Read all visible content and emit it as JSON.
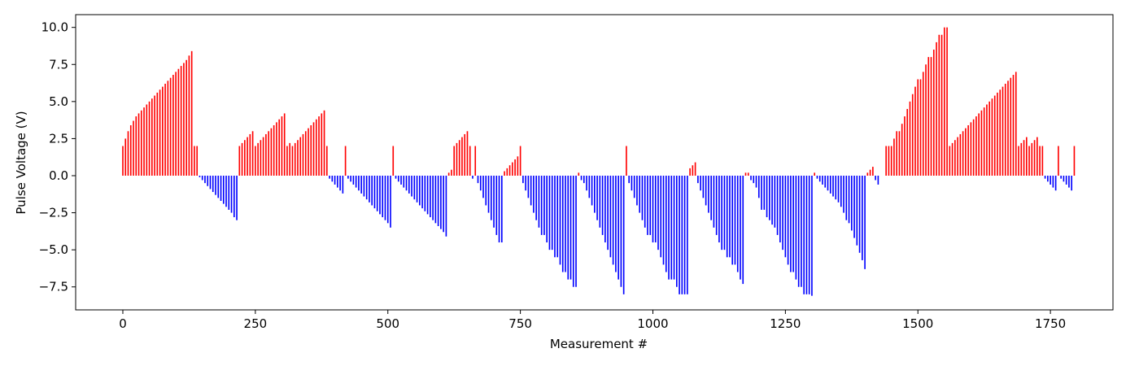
{
  "chart_data": {
    "type": "bar",
    "x_label": "Measurement #",
    "y_label": "Pulse Voltage (V)",
    "positive_color": "#ff0000",
    "negative_color": "#0000ff",
    "xlim": [
      -89,
      1868
    ],
    "ylim": [
      -9.05,
      10.86
    ],
    "xticks": [
      0,
      250,
      500,
      750,
      1000,
      1250,
      1500,
      1750
    ],
    "yticks": [
      {
        "value": -7.5,
        "label": "−7.5"
      },
      {
        "value": -5,
        "label": "−5.0"
      },
      {
        "value": -2.5,
        "label": "−2.5"
      },
      {
        "value": 0,
        "label": "0.0"
      },
      {
        "value": 2.5,
        "label": "2.5"
      },
      {
        "value": 5,
        "label": "5.0"
      },
      {
        "value": 7.5,
        "label": "7.5"
      },
      {
        "value": 10,
        "label": "10.0"
      }
    ],
    "x": [
      0,
      5,
      10,
      15,
      20,
      25,
      30,
      35,
      40,
      45,
      50,
      55,
      60,
      65,
      70,
      75,
      80,
      85,
      90,
      95,
      100,
      105,
      110,
      115,
      120,
      125,
      130,
      135,
      140,
      145,
      150,
      155,
      160,
      165,
      170,
      175,
      180,
      185,
      190,
      195,
      200,
      205,
      210,
      215,
      220,
      225,
      230,
      235,
      240,
      245,
      250,
      255,
      260,
      265,
      270,
      275,
      280,
      285,
      290,
      295,
      300,
      305,
      310,
      315,
      320,
      325,
      330,
      335,
      340,
      345,
      350,
      355,
      360,
      365,
      370,
      375,
      380,
      385,
      390,
      395,
      400,
      405,
      410,
      415,
      420,
      425,
      430,
      435,
      440,
      445,
      450,
      455,
      460,
      465,
      470,
      475,
      480,
      485,
      490,
      495,
      500,
      505,
      510,
      515,
      520,
      525,
      530,
      535,
      540,
      545,
      550,
      555,
      560,
      565,
      570,
      575,
      580,
      585,
      590,
      595,
      600,
      605,
      610,
      615,
      620,
      625,
      630,
      635,
      640,
      645,
      650,
      655,
      660,
      665,
      670,
      675,
      680,
      685,
      690,
      695,
      700,
      705,
      710,
      715,
      720,
      725,
      730,
      735,
      740,
      745,
      750,
      755,
      760,
      765,
      770,
      775,
      780,
      785,
      790,
      795,
      800,
      805,
      810,
      815,
      820,
      825,
      830,
      835,
      840,
      845,
      850,
      855,
      860,
      865,
      870,
      875,
      880,
      885,
      890,
      895,
      900,
      905,
      910,
      915,
      920,
      925,
      930,
      935,
      940,
      945,
      950,
      955,
      960,
      965,
      970,
      975,
      980,
      985,
      990,
      995,
      1000,
      1005,
      1010,
      1015,
      1020,
      1025,
      1030,
      1035,
      1040,
      1045,
      1050,
      1055,
      1060,
      1065,
      1070,
      1075,
      1080,
      1085,
      1090,
      1095,
      1100,
      1105,
      1110,
      1115,
      1120,
      1125,
      1130,
      1135,
      1140,
      1145,
      1150,
      1155,
      1160,
      1165,
      1170,
      1175,
      1180,
      1185,
      1190,
      1195,
      1200,
      1205,
      1210,
      1215,
      1220,
      1225,
      1230,
      1235,
      1240,
      1245,
      1250,
      1255,
      1260,
      1265,
      1270,
      1275,
      1280,
      1285,
      1290,
      1295,
      1300,
      1305,
      1310,
      1315,
      1320,
      1325,
      1330,
      1335,
      1340,
      1345,
      1350,
      1355,
      1360,
      1365,
      1370,
      1375,
      1380,
      1385,
      1390,
      1395,
      1400,
      1405,
      1410,
      1415,
      1420,
      1425,
      1440,
      1445,
      1450,
      1455,
      1460,
      1465,
      1470,
      1475,
      1480,
      1485,
      1490,
      1495,
      1500,
      1505,
      1510,
      1515,
      1520,
      1525,
      1530,
      1535,
      1540,
      1545,
      1550,
      1555,
      1560,
      1565,
      1570,
      1575,
      1580,
      1585,
      1590,
      1595,
      1600,
      1605,
      1610,
      1615,
      1620,
      1625,
      1630,
      1635,
      1640,
      1645,
      1650,
      1655,
      1660,
      1665,
      1670,
      1675,
      1680,
      1685,
      1690,
      1695,
      1700,
      1705,
      1710,
      1715,
      1720,
      1725,
      1730,
      1735,
      1740,
      1745,
      1750,
      1755,
      1760,
      1765,
      1770,
      1775,
      1780,
      1785,
      1790,
      1795
    ],
    "values": [
      2.0,
      2.5,
      3.0,
      3.4,
      3.7,
      4.0,
      4.2,
      4.4,
      4.6,
      4.8,
      5.0,
      5.2,
      5.4,
      5.6,
      5.8,
      6.0,
      6.2,
      6.4,
      6.6,
      6.8,
      7.0,
      7.2,
      7.4,
      7.6,
      7.8,
      8.1,
      8.4,
      2.0,
      2.0,
      -0.1,
      -0.3,
      -0.5,
      -0.7,
      -0.9,
      -1.1,
      -1.3,
      -1.5,
      -1.7,
      -1.9,
      -2.1,
      -2.3,
      -2.5,
      -2.8,
      -3.0,
      2.0,
      2.2,
      2.4,
      2.6,
      2.8,
      3.0,
      2.0,
      2.2,
      2.4,
      2.6,
      2.8,
      3.0,
      3.2,
      3.4,
      3.6,
      3.8,
      4.0,
      4.2,
      2.0,
      2.2,
      2.0,
      2.2,
      2.4,
      2.6,
      2.8,
      3.0,
      3.2,
      3.4,
      3.6,
      3.8,
      4.0,
      4.2,
      4.4,
      2.0,
      -0.2,
      -0.4,
      -0.6,
      -0.8,
      -1.0,
      -1.2,
      2.0,
      -0.2,
      -0.4,
      -0.6,
      -0.8,
      -1.0,
      -1.2,
      -1.4,
      -1.6,
      -1.8,
      -2.0,
      -2.2,
      -2.4,
      -2.6,
      -2.8,
      -3.0,
      -3.2,
      -3.5,
      2.0,
      -0.2,
      -0.4,
      -0.6,
      -0.8,
      -1.0,
      -1.2,
      -1.4,
      -1.6,
      -1.8,
      -2.0,
      -2.2,
      -2.4,
      -2.6,
      -2.8,
      -3.0,
      -3.2,
      -3.4,
      -3.6,
      -3.8,
      -4.1,
      0.2,
      0.4,
      2.0,
      2.2,
      2.4,
      2.6,
      2.8,
      3.0,
      2.0,
      -0.2,
      2.0,
      -0.5,
      -1.0,
      -1.5,
      -2.0,
      -2.5,
      -3.0,
      -3.5,
      -4.0,
      -4.5,
      -4.5,
      0.3,
      0.5,
      0.7,
      0.9,
      1.1,
      1.3,
      2.0,
      -0.5,
      -1.0,
      -1.5,
      -2.0,
      -2.5,
      -3.0,
      -3.5,
      -4.0,
      -4.0,
      -4.5,
      -5.0,
      -5.0,
      -5.5,
      -5.5,
      -6.0,
      -6.5,
      -6.5,
      -7.0,
      -7.0,
      -7.5,
      -7.5,
      0.2,
      -0.3,
      -0.5,
      -1.0,
      -1.5,
      -2.0,
      -2.5,
      -3.0,
      -3.5,
      -4.0,
      -4.5,
      -5.0,
      -5.5,
      -6.0,
      -6.5,
      -7.0,
      -7.5,
      -8.0,
      2.0,
      -0.5,
      -1.0,
      -1.5,
      -2.0,
      -2.5,
      -3.0,
      -3.5,
      -4.0,
      -4.0,
      -4.5,
      -4.5,
      -5.0,
      -5.5,
      -6.0,
      -6.5,
      -7.0,
      -7.0,
      -7.0,
      -7.5,
      -8.0,
      -8.0,
      -8.0,
      -8.0,
      0.5,
      0.7,
      0.9,
      -0.5,
      -1.0,
      -1.5,
      -2.0,
      -2.5,
      -3.0,
      -3.5,
      -4.0,
      -4.5,
      -5.0,
      -5.0,
      -5.5,
      -5.5,
      -6.0,
      -6.0,
      -6.5,
      -7.0,
      -7.3,
      0.2,
      0.2,
      -0.3,
      -0.5,
      -0.8,
      -1.5,
      -2.3,
      -2.3,
      -2.8,
      -3.0,
      -3.3,
      -3.5,
      -4.0,
      -4.5,
      -5.0,
      -5.5,
      -6.0,
      -6.5,
      -6.5,
      -7.0,
      -7.5,
      -7.5,
      -8.0,
      -8.0,
      -8.0,
      -8.1,
      0.2,
      -0.2,
      -0.4,
      -0.6,
      -0.8,
      -1.0,
      -1.2,
      -1.4,
      -1.6,
      -1.8,
      -2.1,
      -2.5,
      -3.0,
      -3.2,
      -3.7,
      -4.2,
      -4.7,
      -5.2,
      -5.7,
      -6.3,
      0.2,
      0.4,
      0.6,
      -0.3,
      -0.6,
      2.0,
      2.0,
      2.0,
      2.5,
      3.0,
      3.0,
      3.5,
      4.0,
      4.5,
      5.0,
      5.5,
      6.0,
      6.5,
      6.5,
      7.0,
      7.5,
      8.0,
      8.0,
      8.5,
      9.0,
      9.5,
      9.5,
      10.0,
      10.0,
      2.0,
      2.2,
      2.4,
      2.6,
      2.8,
      3.0,
      3.2,
      3.4,
      3.6,
      3.8,
      4.0,
      4.2,
      4.4,
      4.6,
      4.8,
      5.0,
      5.2,
      5.4,
      5.6,
      5.8,
      6.0,
      6.2,
      6.4,
      6.6,
      6.8,
      7.0,
      2.0,
      2.2,
      2.4,
      2.6,
      2.0,
      2.2,
      2.4,
      2.6,
      2.0,
      2.0,
      -0.2,
      -0.4,
      -0.6,
      -0.8,
      -1.0,
      2.0,
      -0.2,
      -0.4,
      -0.6,
      -0.8,
      -1.0,
      2.0
    ]
  }
}
